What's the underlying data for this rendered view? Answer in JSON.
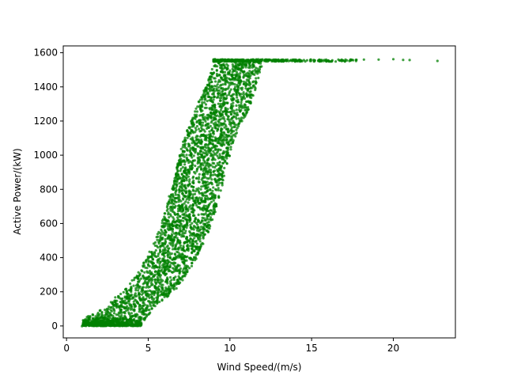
{
  "chart_data": {
    "type": "scatter",
    "title": "",
    "xlabel": "Wind Speed/(m/s)",
    "ylabel": "Active Power/(kW)",
    "xlim": [
      -0.2,
      23.8
    ],
    "ylim": [
      -70,
      1640
    ],
    "x_ticks": [
      0,
      5,
      10,
      15,
      20
    ],
    "y_ticks": [
      0,
      200,
      400,
      600,
      800,
      1000,
      1200,
      1400,
      1600
    ],
    "grid": false,
    "legend": "none",
    "marker_color": "#008000",
    "band": [
      {
        "power": 0,
        "wind_min": 0.9,
        "wind_max": 4.4
      },
      {
        "power": 50,
        "wind_min": 1.2,
        "wind_max": 5.0
      },
      {
        "power": 100,
        "wind_min": 2.2,
        "wind_max": 5.3
      },
      {
        "power": 200,
        "wind_min": 3.4,
        "wind_max": 6.6
      },
      {
        "power": 300,
        "wind_min": 4.3,
        "wind_max": 7.4
      },
      {
        "power": 400,
        "wind_min": 4.9,
        "wind_max": 8.0
      },
      {
        "power": 500,
        "wind_min": 5.4,
        "wind_max": 8.5
      },
      {
        "power": 600,
        "wind_min": 5.8,
        "wind_max": 8.9
      },
      {
        "power": 700,
        "wind_min": 6.1,
        "wind_max": 9.2
      },
      {
        "power": 800,
        "wind_min": 6.4,
        "wind_max": 9.5
      },
      {
        "power": 900,
        "wind_min": 6.7,
        "wind_max": 9.7
      },
      {
        "power": 1000,
        "wind_min": 6.9,
        "wind_max": 10.0
      },
      {
        "power": 1100,
        "wind_min": 7.2,
        "wind_max": 10.3
      },
      {
        "power": 1200,
        "wind_min": 7.6,
        "wind_max": 10.8
      },
      {
        "power": 1300,
        "wind_min": 8.0,
        "wind_max": 11.3
      },
      {
        "power": 1400,
        "wind_min": 8.5,
        "wind_max": 11.6
      },
      {
        "power": 1500,
        "wind_min": 8.9,
        "wind_max": 11.9
      },
      {
        "power": 1560,
        "wind_min": 9.0,
        "wind_max": 12.2
      }
    ],
    "rated_plateau": {
      "power": 1560,
      "wind_min": 9.0,
      "wind_max": 17.8
    },
    "outliers": [
      {
        "x": 18.2,
        "y": 1560
      },
      {
        "x": 19.1,
        "y": 1560
      },
      {
        "x": 20.0,
        "y": 1562
      },
      {
        "x": 20.6,
        "y": 1558
      },
      {
        "x": 21.0,
        "y": 1557
      },
      {
        "x": 22.7,
        "y": 1552
      }
    ]
  }
}
